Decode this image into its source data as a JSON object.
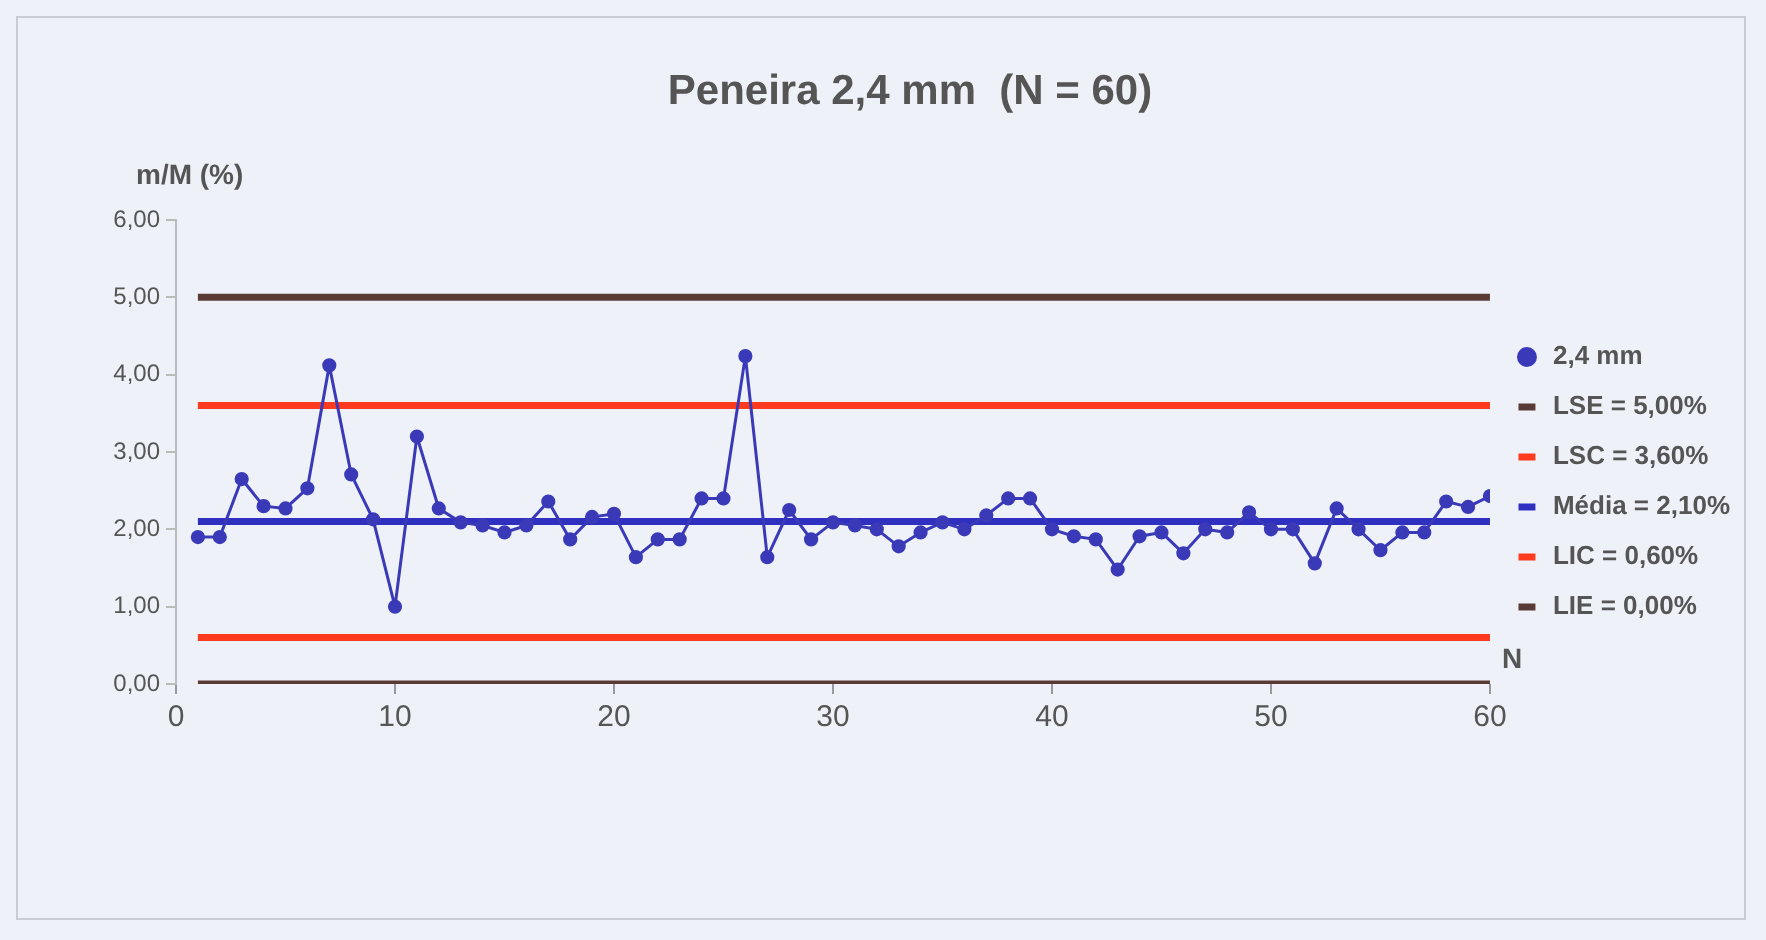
{
  "chart_data": {
    "type": "line",
    "title": "Peneira 2,4 mm  (N = 60)",
    "xlabel": "N",
    "ylabel": "m/M (%)",
    "x": [
      1,
      2,
      3,
      4,
      5,
      6,
      7,
      8,
      9,
      10,
      11,
      12,
      13,
      14,
      15,
      16,
      17,
      18,
      19,
      20,
      21,
      22,
      23,
      24,
      25,
      26,
      27,
      28,
      29,
      30,
      31,
      32,
      33,
      34,
      35,
      36,
      37,
      38,
      39,
      40,
      41,
      42,
      43,
      44,
      45,
      46,
      47,
      48,
      49,
      50,
      51,
      52,
      53,
      54,
      55,
      56,
      57,
      58,
      59,
      60
    ],
    "series": [
      {
        "name": "2,4 mm",
        "color": "#3a3ab8",
        "marker": "circle",
        "values": [
          1.9,
          1.9,
          2.65,
          2.3,
          2.27,
          2.53,
          4.12,
          2.71,
          2.13,
          1.0,
          3.2,
          2.27,
          2.09,
          2.05,
          1.96,
          2.05,
          2.36,
          1.87,
          2.16,
          2.2,
          1.64,
          1.87,
          1.87,
          2.4,
          2.4,
          4.24,
          1.64,
          2.25,
          1.87,
          2.09,
          2.05,
          2.0,
          1.78,
          1.96,
          2.09,
          2.0,
          2.18,
          2.4,
          2.4,
          2.0,
          1.91,
          1.87,
          1.48,
          1.91,
          1.96,
          1.69,
          2.0,
          1.96,
          2.22,
          2.0,
          2.0,
          1.56,
          2.27,
          2.0,
          1.73,
          1.96,
          1.96,
          2.36,
          2.29,
          2.43
        ]
      },
      {
        "name": "LSE = 5,00%",
        "color": "#5a3a34",
        "marker": "none",
        "values": [
          5,
          5,
          5,
          5,
          5,
          5,
          5,
          5,
          5,
          5,
          5,
          5,
          5,
          5,
          5,
          5,
          5,
          5,
          5,
          5,
          5,
          5,
          5,
          5,
          5,
          5,
          5,
          5,
          5,
          5,
          5,
          5,
          5,
          5,
          5,
          5,
          5,
          5,
          5,
          5,
          5,
          5,
          5,
          5,
          5,
          5,
          5,
          5,
          5,
          5,
          5,
          5,
          5,
          5,
          5,
          5,
          5,
          5,
          5,
          5
        ]
      },
      {
        "name": "LSC = 3,60%",
        "color": "#ff3b1f",
        "marker": "none",
        "values": [
          3.6,
          3.6,
          3.6,
          3.6,
          3.6,
          3.6,
          3.6,
          3.6,
          3.6,
          3.6,
          3.6,
          3.6,
          3.6,
          3.6,
          3.6,
          3.6,
          3.6,
          3.6,
          3.6,
          3.6,
          3.6,
          3.6,
          3.6,
          3.6,
          3.6,
          3.6,
          3.6,
          3.6,
          3.6,
          3.6,
          3.6,
          3.6,
          3.6,
          3.6,
          3.6,
          3.6,
          3.6,
          3.6,
          3.6,
          3.6,
          3.6,
          3.6,
          3.6,
          3.6,
          3.6,
          3.6,
          3.6,
          3.6,
          3.6,
          3.6,
          3.6,
          3.6,
          3.6,
          3.6,
          3.6,
          3.6,
          3.6,
          3.6,
          3.6,
          3.6
        ]
      },
      {
        "name": "Média = 2,10%",
        "color": "#3030c0",
        "marker": "none",
        "values": [
          2.1,
          2.1,
          2.1,
          2.1,
          2.1,
          2.1,
          2.1,
          2.1,
          2.1,
          2.1,
          2.1,
          2.1,
          2.1,
          2.1,
          2.1,
          2.1,
          2.1,
          2.1,
          2.1,
          2.1,
          2.1,
          2.1,
          2.1,
          2.1,
          2.1,
          2.1,
          2.1,
          2.1,
          2.1,
          2.1,
          2.1,
          2.1,
          2.1,
          2.1,
          2.1,
          2.1,
          2.1,
          2.1,
          2.1,
          2.1,
          2.1,
          2.1,
          2.1,
          2.1,
          2.1,
          2.1,
          2.1,
          2.1,
          2.1,
          2.1,
          2.1,
          2.1,
          2.1,
          2.1,
          2.1,
          2.1,
          2.1,
          2.1,
          2.1,
          2.1
        ]
      },
      {
        "name": "LIC = 0,60%",
        "color": "#ff3b1f",
        "marker": "none",
        "values": [
          0.6,
          0.6,
          0.6,
          0.6,
          0.6,
          0.6,
          0.6,
          0.6,
          0.6,
          0.6,
          0.6,
          0.6,
          0.6,
          0.6,
          0.6,
          0.6,
          0.6,
          0.6,
          0.6,
          0.6,
          0.6,
          0.6,
          0.6,
          0.6,
          0.6,
          0.6,
          0.6,
          0.6,
          0.6,
          0.6,
          0.6,
          0.6,
          0.6,
          0.6,
          0.6,
          0.6,
          0.6,
          0.6,
          0.6,
          0.6,
          0.6,
          0.6,
          0.6,
          0.6,
          0.6,
          0.6,
          0.6,
          0.6,
          0.6,
          0.6,
          0.6,
          0.6,
          0.6,
          0.6,
          0.6,
          0.6,
          0.6,
          0.6,
          0.6,
          0.6
        ]
      },
      {
        "name": "LIE = 0,00%",
        "color": "#5a3a34",
        "marker": "none",
        "values": [
          0,
          0,
          0,
          0,
          0,
          0,
          0,
          0,
          0,
          0,
          0,
          0,
          0,
          0,
          0,
          0,
          0,
          0,
          0,
          0,
          0,
          0,
          0,
          0,
          0,
          0,
          0,
          0,
          0,
          0,
          0,
          0,
          0,
          0,
          0,
          0,
          0,
          0,
          0,
          0,
          0,
          0,
          0,
          0,
          0,
          0,
          0,
          0,
          0,
          0,
          0,
          0,
          0,
          0,
          0,
          0,
          0,
          0,
          0,
          0
        ]
      }
    ],
    "xlim": [
      0,
      60
    ],
    "xticks": [
      0,
      10,
      20,
      30,
      40,
      50,
      60
    ],
    "ylim": [
      0,
      6
    ],
    "yticks": [
      {
        "value": 0,
        "label": "0,00"
      },
      {
        "value": 1,
        "label": "1,00"
      },
      {
        "value": 2,
        "label": "2,00"
      },
      {
        "value": 3,
        "label": "3,00"
      },
      {
        "value": 4,
        "label": "4,00"
      },
      {
        "value": 5,
        "label": "5,00"
      },
      {
        "value": 6,
        "label": "6,00"
      }
    ],
    "grid": false,
    "legend": "right",
    "line_style": "solid"
  }
}
